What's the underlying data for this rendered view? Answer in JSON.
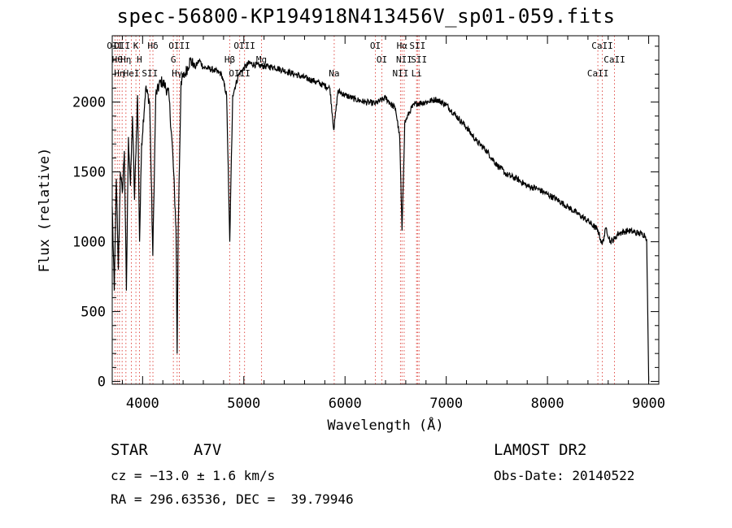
{
  "chart_data": {
    "type": "line",
    "title": "spec-56800-KP194918N413456V_sp01-059.fits",
    "xlabel": "Wavelength (Å)",
    "ylabel": "Flux (relative)",
    "xlim": [
      3700,
      9100
    ],
    "ylim": [
      -20,
      2475
    ],
    "xticks": [
      4000,
      5000,
      6000,
      7000,
      8000,
      9000
    ],
    "yticks": [
      0,
      500,
      1000,
      1500,
      2000
    ],
    "grid": false,
    "series": [
      {
        "x": [
          3700,
          3720,
          3740,
          3760,
          3780,
          3800,
          3820,
          3840,
          3860,
          3880,
          3900,
          3920,
          3950,
          3970,
          3990,
          4030,
          4070,
          4101,
          4130,
          4180,
          4220,
          4260,
          4300,
          4330,
          4341,
          4352,
          4380,
          4420,
          4470,
          4520,
          4560,
          4600,
          4700,
          4780,
          4830,
          4861,
          4890,
          4950,
          5050,
          5150,
          5300,
          5500,
          5700,
          5850,
          5890,
          5930,
          6000,
          6100,
          6200,
          6300,
          6400,
          6500,
          6540,
          6563,
          6590,
          6650,
          6700,
          6800,
          6900,
          7000,
          7100,
          7200,
          7300,
          7400,
          7500,
          7600,
          7700,
          7800,
          7900,
          8000,
          8100,
          8200,
          8300,
          8400,
          8500,
          8540,
          8580,
          8620,
          8662,
          8700,
          8800,
          8900,
          8960,
          8980,
          9000
        ],
        "y": [
          1250,
          650,
          1450,
          800,
          1500,
          1350,
          1650,
          650,
          1750,
          1400,
          1900,
          1300,
          2050,
          1000,
          1700,
          2100,
          2000,
          900,
          2050,
          2150,
          2120,
          2050,
          1600,
          1100,
          200,
          1100,
          2150,
          2200,
          2300,
          2250,
          2300,
          2250,
          2230,
          2200,
          2050,
          1000,
          2050,
          2200,
          2280,
          2260,
          2250,
          2200,
          2150,
          2100,
          1800,
          2080,
          2050,
          2020,
          2000,
          1990,
          2030,
          1950,
          1750,
          1080,
          1850,
          1950,
          1990,
          2000,
          2020,
          1980,
          1900,
          1820,
          1720,
          1650,
          1550,
          1480,
          1450,
          1400,
          1380,
          1340,
          1300,
          1250,
          1200,
          1150,
          1080,
          980,
          1100,
          1000,
          1020,
          1060,
          1080,
          1060,
          1050,
          1020,
          0
        ]
      }
    ],
    "lines": [
      {
        "x": 3727,
        "label": "OII"
      },
      {
        "x": 3750,
        "label": "Hθ"
      },
      {
        "x": 3771,
        "label": "Hη"
      },
      {
        "x": 3798,
        "label": "OII"
      },
      {
        "x": 3835,
        "label": "Hη"
      },
      {
        "x": 3889,
        "label": "HeI"
      },
      {
        "x": 3934,
        "label": "K"
      },
      {
        "x": 3969,
        "label": "H"
      },
      {
        "x": 4072,
        "label": "SII"
      },
      {
        "x": 4102,
        "label": "Hδ"
      },
      {
        "x": 4304,
        "label": "G"
      },
      {
        "x": 4341,
        "label": "Hγ"
      },
      {
        "x": 4363,
        "label": "OIII"
      },
      {
        "x": 4861,
        "label": "Hβ"
      },
      {
        "x": 4959,
        "label": "OIII"
      },
      {
        "x": 5007,
        "label": "OIII"
      },
      {
        "x": 5175,
        "label": "Mg"
      },
      {
        "x": 5893,
        "label": "Na"
      },
      {
        "x": 6300,
        "label": "OI"
      },
      {
        "x": 6364,
        "label": "OI"
      },
      {
        "x": 6548,
        "label": "NII"
      },
      {
        "x": 6563,
        "label": "Hα"
      },
      {
        "x": 6584,
        "label": "NII"
      },
      {
        "x": 6707,
        "label": "Li"
      },
      {
        "x": 6716,
        "label": "SII"
      },
      {
        "x": 6731,
        "label": "SII"
      },
      {
        "x": 8498,
        "label": "CaII"
      },
      {
        "x": 8542,
        "label": "CaII"
      },
      {
        "x": 8662,
        "label": "CaII"
      }
    ]
  },
  "info": {
    "object_type": "STAR",
    "subclass": "A7V",
    "survey": "LAMOST DR2",
    "cz": "cz = −13.0 ± 1.6 km/s",
    "obs_date": "Obs-Date: 20140522",
    "coords": "RA = 296.63536, DEC =  39.79946"
  },
  "colors": {
    "line": "#000000",
    "marker": "#e0504a",
    "background": "#ffffff"
  }
}
